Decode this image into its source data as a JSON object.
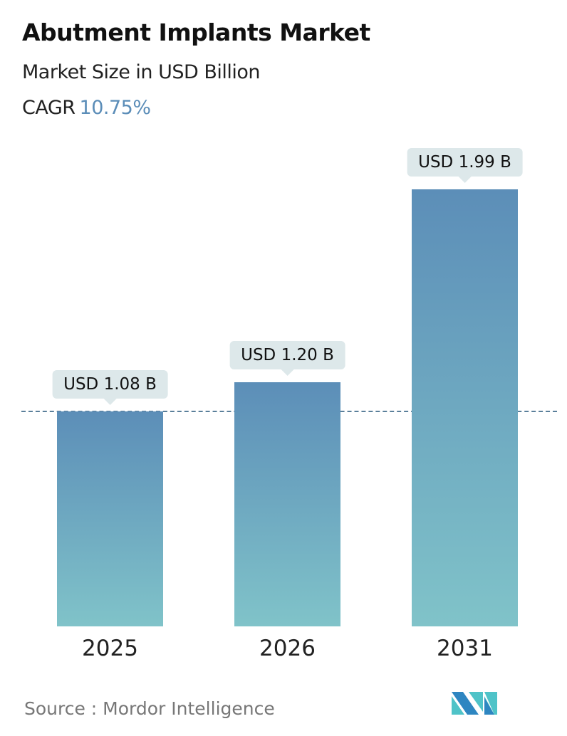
{
  "header": {
    "title": "Abutment Implants Market",
    "subtitle": "Market Size in USD Billion",
    "cagr_label": "CAGR",
    "cagr_value": "10.75%"
  },
  "chart_data": {
    "type": "bar",
    "categories": [
      "2025",
      "2026",
      "2031"
    ],
    "values": [
      1.08,
      1.2,
      1.99
    ],
    "data_labels": [
      "USD 1.08 B",
      "USD 1.20 B",
      "USD 1.99 B"
    ],
    "reference_line": 1.08,
    "colors": {
      "bar_top": "#5c8eb8",
      "bar_bottom": "#80c3c9",
      "accent": "#5b8db8"
    }
  },
  "footer": {
    "source": "Source :  Mordor Intelligence",
    "logo_text": "MI"
  }
}
